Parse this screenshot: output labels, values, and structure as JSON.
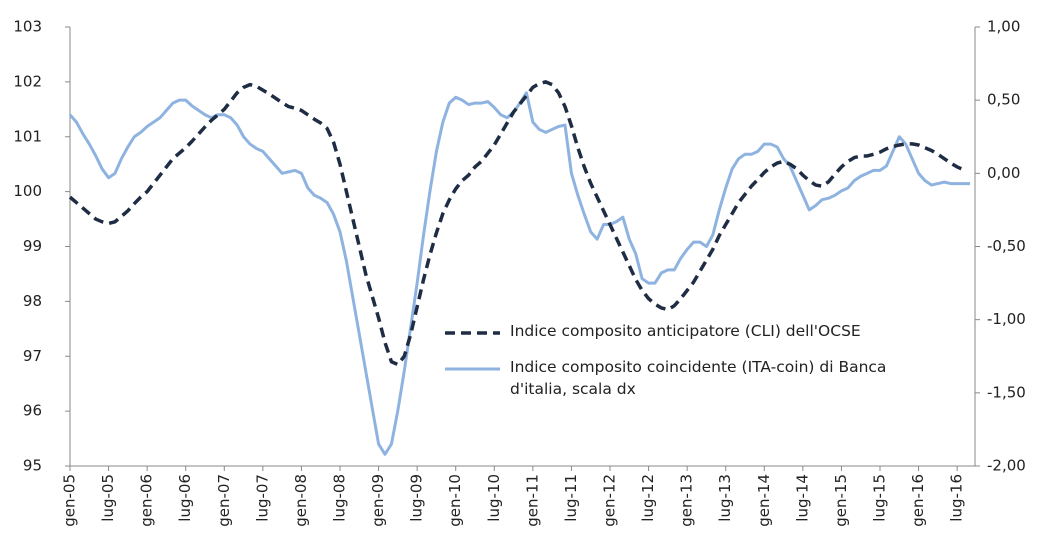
{
  "chart_data": {
    "type": "line",
    "categories": [
      "gen-05",
      null,
      null,
      null,
      null,
      null,
      "lug-05",
      null,
      null,
      null,
      null,
      null,
      "gen-06",
      null,
      null,
      null,
      null,
      null,
      "lug-06",
      null,
      null,
      null,
      null,
      null,
      "gen-07",
      null,
      null,
      null,
      null,
      null,
      "lug-07",
      null,
      null,
      null,
      null,
      null,
      "gen-08",
      null,
      null,
      null,
      null,
      null,
      "lug-08",
      null,
      null,
      null,
      null,
      null,
      "gen-09",
      null,
      null,
      null,
      null,
      null,
      "lug-09",
      null,
      null,
      null,
      null,
      null,
      "gen-10",
      null,
      null,
      null,
      null,
      null,
      "lug-10",
      null,
      null,
      null,
      null,
      null,
      "gen-11",
      null,
      null,
      null,
      null,
      null,
      "lug-11",
      null,
      null,
      null,
      null,
      null,
      "gen-12",
      null,
      null,
      null,
      null,
      null,
      "lug-12",
      null,
      null,
      null,
      null,
      null,
      "gen-13",
      null,
      null,
      null,
      null,
      null,
      "lug-13",
      null,
      null,
      null,
      null,
      null,
      "gen-14",
      null,
      null,
      null,
      null,
      null,
      "lug-14",
      null,
      null,
      null,
      null,
      null,
      "gen-15",
      null,
      null,
      null,
      null,
      null,
      "lug-15",
      null,
      null,
      null,
      null,
      null,
      "gen-16",
      null,
      null,
      null,
      null,
      null,
      "lug-16",
      null,
      null
    ],
    "series": [
      {
        "name": "Indice composito anticipatore (CLI) dell'OCSE",
        "color": "#1f2d44",
        "dashed": true,
        "axis": "y",
        "values": [
          99.9,
          99.8,
          99.7,
          99.6,
          99.5,
          99.45,
          99.42,
          99.45,
          99.55,
          99.65,
          99.78,
          99.9,
          100.0,
          100.15,
          100.3,
          100.45,
          100.6,
          100.7,
          100.8,
          100.92,
          101.05,
          101.18,
          101.3,
          101.4,
          101.5,
          101.65,
          101.8,
          101.9,
          101.95,
          101.92,
          101.85,
          101.78,
          101.7,
          101.62,
          101.55,
          101.52,
          101.48,
          101.4,
          101.32,
          101.25,
          101.15,
          100.9,
          100.5,
          100.0,
          99.5,
          99.0,
          98.5,
          98.1,
          97.7,
          97.25,
          96.9,
          96.85,
          97.0,
          97.4,
          97.9,
          98.4,
          98.85,
          99.25,
          99.6,
          99.85,
          100.05,
          100.2,
          100.3,
          100.45,
          100.55,
          100.7,
          100.85,
          101.05,
          101.25,
          101.45,
          101.6,
          101.75,
          101.9,
          101.97,
          102.0,
          101.95,
          101.8,
          101.55,
          101.2,
          100.8,
          100.45,
          100.15,
          99.9,
          99.65,
          99.4,
          99.15,
          98.9,
          98.65,
          98.4,
          98.2,
          98.05,
          97.95,
          97.88,
          97.85,
          97.92,
          98.05,
          98.2,
          98.35,
          98.55,
          98.75,
          98.95,
          99.2,
          99.4,
          99.6,
          99.8,
          99.95,
          100.1,
          100.22,
          100.35,
          100.45,
          100.52,
          100.55,
          100.5,
          100.42,
          100.3,
          100.2,
          100.12,
          100.1,
          100.18,
          100.32,
          100.45,
          100.55,
          100.62,
          100.65,
          100.65,
          100.68,
          100.72,
          100.78,
          100.82,
          100.85,
          100.87,
          100.87,
          100.85,
          100.8,
          100.75,
          100.68,
          100.6,
          100.52,
          100.45,
          100.4,
          null
        ]
      },
      {
        "name": "Indice composito coincidente (ITA-coin) di Banca d'italia, scala dx",
        "color": "#8fb3e0",
        "dashed": false,
        "axis": "y2",
        "values": [
          0.4,
          0.35,
          0.27,
          0.2,
          0.12,
          0.03,
          -0.03,
          0.0,
          0.1,
          0.18,
          0.25,
          0.28,
          0.32,
          0.35,
          0.38,
          0.43,
          0.48,
          0.5,
          0.5,
          0.46,
          0.43,
          0.4,
          0.38,
          0.4,
          0.4,
          0.38,
          0.33,
          0.25,
          0.2,
          0.17,
          0.15,
          0.1,
          0.05,
          0.0,
          0.01,
          0.02,
          0.0,
          -0.1,
          -0.15,
          -0.17,
          -0.2,
          -0.28,
          -0.4,
          -0.6,
          -0.85,
          -1.1,
          -1.35,
          -1.6,
          -1.85,
          -1.92,
          -1.85,
          -1.62,
          -1.35,
          -1.05,
          -0.75,
          -0.42,
          -0.12,
          0.15,
          0.35,
          0.48,
          0.52,
          0.5,
          0.47,
          0.48,
          0.48,
          0.49,
          0.45,
          0.4,
          0.38,
          0.42,
          0.48,
          0.55,
          0.35,
          0.3,
          0.28,
          0.3,
          0.32,
          0.33,
          0.0,
          -0.15,
          -0.28,
          -0.4,
          -0.45,
          -0.35,
          -0.35,
          -0.33,
          -0.3,
          -0.45,
          -0.55,
          -0.72,
          -0.75,
          -0.75,
          -0.68,
          -0.66,
          -0.66,
          -0.58,
          -0.52,
          -0.47,
          -0.47,
          -0.5,
          -0.42,
          -0.25,
          -0.1,
          0.03,
          0.1,
          0.13,
          0.13,
          0.15,
          0.2,
          0.2,
          0.18,
          0.1,
          0.05,
          -0.05,
          -0.15,
          -0.25,
          -0.22,
          -0.18,
          -0.17,
          -0.15,
          -0.12,
          -0.1,
          -0.05,
          -0.02,
          0.0,
          0.02,
          0.02,
          0.05,
          0.15,
          0.25,
          0.2,
          0.1,
          0.0,
          -0.05,
          -0.08,
          -0.07,
          -0.06,
          -0.07,
          -0.07,
          -0.07,
          -0.07
        ]
      }
    ],
    "ylim": [
      95,
      103
    ],
    "yticks": [
      95,
      96,
      97,
      98,
      99,
      100,
      101,
      102,
      103
    ],
    "y2lim": [
      -2,
      1
    ],
    "y2ticks": [
      {
        "value": -2,
        "label": "-2,00"
      },
      {
        "value": -1.5,
        "label": "-1,50"
      },
      {
        "value": -1,
        "label": "-1,00"
      },
      {
        "value": -0.5,
        "label": "-0,50"
      },
      {
        "value": 0,
        "label": "0,00"
      },
      {
        "value": 0.5,
        "label": "0,50"
      },
      {
        "value": 1,
        "label": "1,00"
      }
    ],
    "grid": false,
    "legend": "lower right"
  }
}
